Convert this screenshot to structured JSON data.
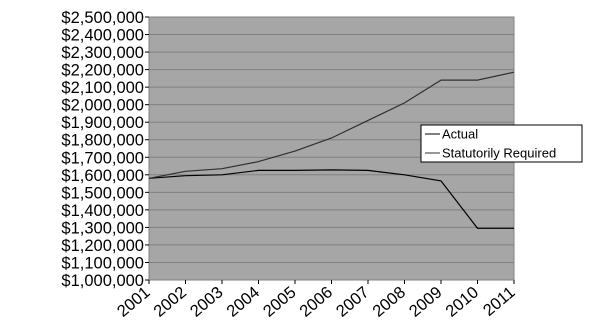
{
  "chart_data": {
    "type": "line",
    "title": "",
    "xlabel": "",
    "ylabel": "",
    "x": [
      "2001",
      "2002",
      "2003",
      "2004",
      "2005",
      "2006",
      "2007",
      "2008",
      "2009",
      "2010",
      "2011"
    ],
    "ylim": [
      1000000,
      2500000
    ],
    "yticks": [
      "$1,000,000",
      "$1,100,000",
      "$1,200,000",
      "$1,300,000",
      "$1,400,000",
      "$1,500,000",
      "$1,600,000",
      "$1,700,000",
      "$1,800,000",
      "$1,900,000",
      "$2,000,000",
      "$2,100,000",
      "$2,200,000",
      "$2,300,000",
      "$2,400,000",
      "$2,500,000"
    ],
    "ytick_values": [
      1000000,
      1100000,
      1200000,
      1300000,
      1400000,
      1500000,
      1600000,
      1700000,
      1800000,
      1900000,
      2000000,
      2100000,
      2200000,
      2300000,
      2400000,
      2500000
    ],
    "grid": true,
    "legend_position": "right",
    "series": [
      {
        "name": "Actual",
        "color": "#000000",
        "values": [
          1580000,
          1595000,
          1600000,
          1625000,
          1625000,
          1628000,
          1625000,
          1600000,
          1565000,
          1295000,
          1295000
        ]
      },
      {
        "name": "Statutorily Required",
        "color": "#303030",
        "values": [
          1580000,
          1620000,
          1635000,
          1675000,
          1735000,
          1810000,
          1910000,
          2010000,
          2140000,
          2140000,
          2185000
        ]
      }
    ],
    "plot_background": "#a6a6a6",
    "gridline_color": "#808080"
  }
}
